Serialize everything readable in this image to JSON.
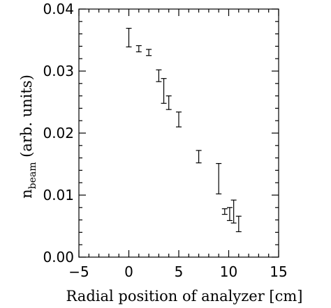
{
  "chart_data": {
    "type": "scatter",
    "title": "",
    "xlabel": "Radial position of analyzer [cm]",
    "ylabel": {
      "prefix": "n",
      "subscript": "beam",
      "suffix": " (arb. units)"
    },
    "xlim": [
      -5,
      15
    ],
    "ylim": [
      0.0,
      0.04
    ],
    "xticks": [
      -5,
      0,
      5,
      10,
      15
    ],
    "xtick_labels": [
      "−5",
      "0",
      "5",
      "10",
      "15"
    ],
    "yticks": [
      0.0,
      0.01,
      0.02,
      0.03,
      0.04
    ],
    "ytick_labels": [
      "0.00",
      "0.01",
      "0.02",
      "0.03",
      "0.04"
    ],
    "x_minor_step": 1,
    "y_minor_step": 0.002,
    "grid": false,
    "legend": "none",
    "marker": "error-bar-only",
    "points": [
      {
        "x": 0.0,
        "ylow": 0.0339,
        "yhigh": 0.0369
      },
      {
        "x": 1.0,
        "ylow": 0.0331,
        "yhigh": 0.0341
      },
      {
        "x": 2.0,
        "ylow": 0.0325,
        "yhigh": 0.0335
      },
      {
        "x": 3.0,
        "ylow": 0.0283,
        "yhigh": 0.0302
      },
      {
        "x": 3.5,
        "ylow": 0.0248,
        "yhigh": 0.0288
      },
      {
        "x": 4.0,
        "ylow": 0.0238,
        "yhigh": 0.026
      },
      {
        "x": 5.0,
        "ylow": 0.021,
        "yhigh": 0.0234
      },
      {
        "x": 7.0,
        "ylow": 0.0152,
        "yhigh": 0.0172
      },
      {
        "x": 9.0,
        "ylow": 0.0102,
        "yhigh": 0.0151
      },
      {
        "x": 9.6,
        "ylow": 0.0069,
        "yhigh": 0.0078
      },
      {
        "x": 10.1,
        "ylow": 0.0059,
        "yhigh": 0.008
      },
      {
        "x": 10.5,
        "ylow": 0.0055,
        "yhigh": 0.0092
      },
      {
        "x": 11.0,
        "ylow": 0.0041,
        "yhigh": 0.0066
      }
    ]
  }
}
